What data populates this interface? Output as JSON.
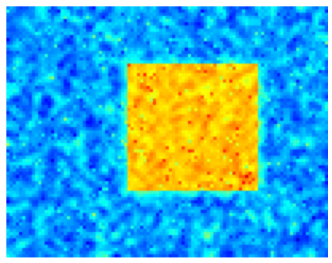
{
  "image": {
    "kind": "noise-heatmap",
    "colormap": "jet",
    "background_level": 0.28,
    "square_level": 0.68,
    "palette": {
      "dark_blue": "#00008f",
      "blue": "#0033ff",
      "cyan": "#00ddff",
      "yellow": "#f3f52d",
      "orange": "#ff9a00",
      "red": "#e03a1a"
    }
  }
}
